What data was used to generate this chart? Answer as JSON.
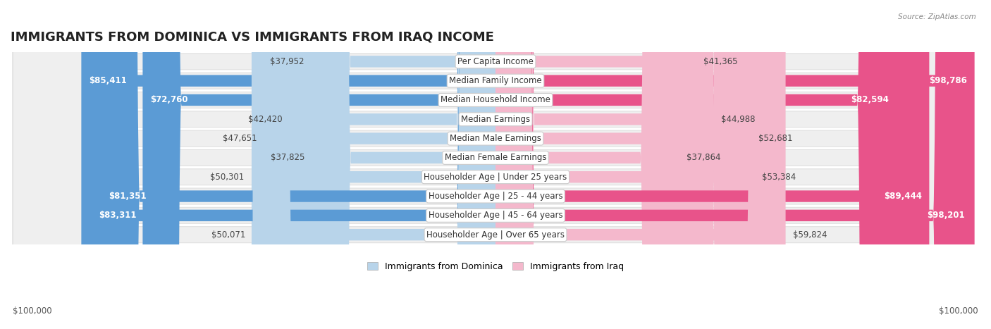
{
  "title": "IMMIGRANTS FROM DOMINICA VS IMMIGRANTS FROM IRAQ INCOME",
  "source": "Source: ZipAtlas.com",
  "categories": [
    "Per Capita Income",
    "Median Family Income",
    "Median Household Income",
    "Median Earnings",
    "Median Male Earnings",
    "Median Female Earnings",
    "Householder Age | Under 25 years",
    "Householder Age | 25 - 44 years",
    "Householder Age | 45 - 64 years",
    "Householder Age | Over 65 years"
  ],
  "dominica_values": [
    37952,
    85411,
    72760,
    42420,
    47651,
    37825,
    50301,
    81351,
    83311,
    50071
  ],
  "iraq_values": [
    41365,
    98786,
    82594,
    44988,
    52681,
    37864,
    53384,
    89444,
    98201,
    59824
  ],
  "dominica_labels": [
    "$37,952",
    "$85,411",
    "$72,760",
    "$42,420",
    "$47,651",
    "$37,825",
    "$50,301",
    "$81,351",
    "$83,311",
    "$50,071"
  ],
  "iraq_labels": [
    "$41,365",
    "$98,786",
    "$82,594",
    "$44,988",
    "$52,681",
    "$37,864",
    "$53,384",
    "$89,444",
    "$98,201",
    "$59,824"
  ],
  "max_value": 100000,
  "dominica_color_light": "#b8d4ea",
  "dominica_color_dark": "#5b9bd5",
  "iraq_color_light": "#f4b8cc",
  "iraq_color_dark": "#e8538a",
  "bg_color": "#ffffff",
  "row_bg_color": "#efefef",
  "row_border_color": "#e0e0e0",
  "legend_dominica": "Immigrants from Dominica",
  "legend_iraq": "Immigrants from Iraq",
  "xlabel_left": "$100,000",
  "xlabel_right": "$100,000",
  "title_fontsize": 13,
  "label_fontsize": 8.5,
  "category_fontsize": 8.5,
  "dominica_high_threshold": 60000,
  "iraq_high_threshold": 60000
}
